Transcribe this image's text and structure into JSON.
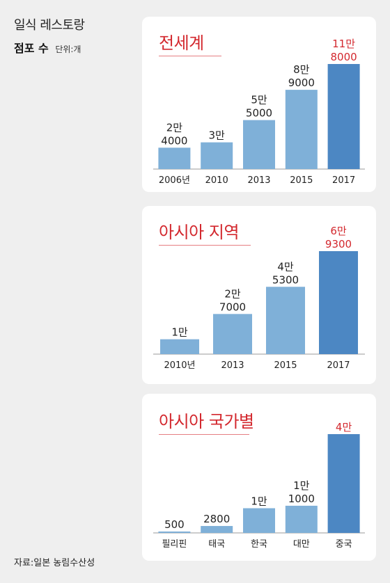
{
  "header": {
    "title": "일식 레스토랑",
    "subtitle": "점포 수",
    "unit": "단위:개"
  },
  "source": "자료:일본 농림수산성",
  "colors": {
    "bar": "#7fb0d8",
    "bar_highlight": "#4c87c3",
    "label": "#222222",
    "label_highlight": "#d3282e",
    "title": "#d3282e",
    "panel_bg": "#ffffff",
    "page_bg": "#efefef"
  },
  "chart_data": [
    {
      "type": "bar",
      "title": "전세계",
      "categories": [
        "2006년",
        "2010",
        "2013",
        "2015",
        "2017"
      ],
      "values": [
        24000,
        30000,
        55000,
        89000,
        118000
      ],
      "value_labels": [
        [
          "2만",
          "4000"
        ],
        [
          "3만"
        ],
        [
          "5만",
          "5000"
        ],
        [
          "8만",
          "9000"
        ],
        [
          "11만",
          "8000"
        ]
      ],
      "highlight_index": 4,
      "ylim": [
        0,
        118000
      ]
    },
    {
      "type": "bar",
      "title": "아시아 지역",
      "categories": [
        "2010년",
        "2013",
        "2015",
        "2017"
      ],
      "values": [
        10000,
        27000,
        45300,
        69300
      ],
      "value_labels": [
        [
          "1만"
        ],
        [
          "2만",
          "7000"
        ],
        [
          "4만",
          "5300"
        ],
        [
          "6만",
          "9300"
        ]
      ],
      "highlight_index": 3,
      "ylim": [
        0,
        69300
      ]
    },
    {
      "type": "bar",
      "title": "아시아 국가별",
      "categories": [
        "필리핀",
        "태국",
        "한국",
        "대만",
        "중국"
      ],
      "values": [
        500,
        2800,
        10000,
        11000,
        40000
      ],
      "value_labels": [
        [
          "500"
        ],
        [
          "2800"
        ],
        [
          "1만"
        ],
        [
          "1만",
          "1000"
        ],
        [
          "4만"
        ]
      ],
      "highlight_index": 4,
      "ylim": [
        0,
        40000
      ]
    }
  ]
}
